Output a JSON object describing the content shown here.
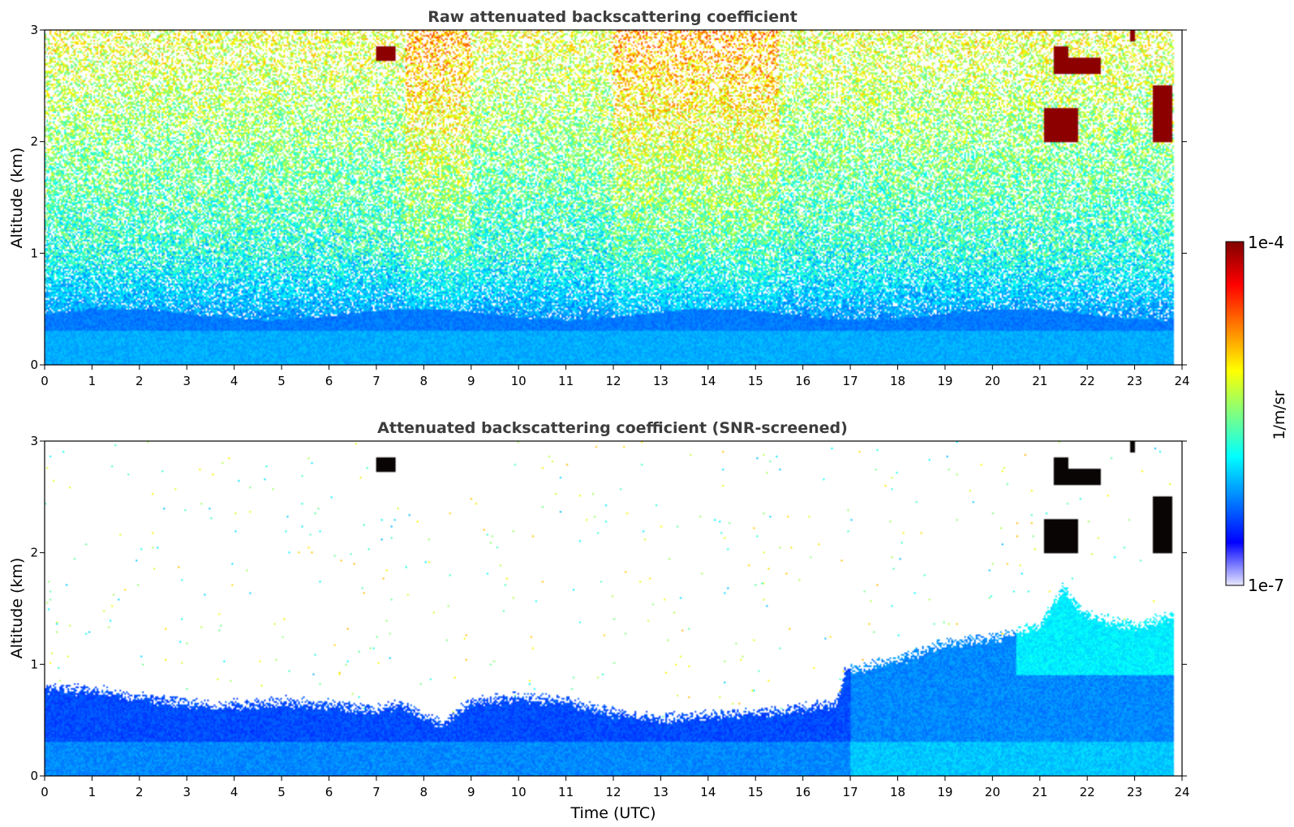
{
  "chart_data": [
    {
      "type": "heatmap",
      "title": "Raw attenuated backscattering coefficient",
      "xlabel": "",
      "ylabel": "Altitude (km)",
      "xlim": [
        0,
        24
      ],
      "ylim": [
        0,
        3
      ],
      "x_ticks": [
        "0",
        "1",
        "2",
        "3",
        "4",
        "5",
        "6",
        "7",
        "8",
        "9",
        "10",
        "11",
        "12",
        "13",
        "14",
        "15",
        "16",
        "17",
        "18",
        "19",
        "20",
        "21",
        "22",
        "23",
        "24"
      ],
      "y_ticks": [
        "0",
        "1",
        "2",
        "3"
      ],
      "layers": [
        {
          "feature": "near-surface layer",
          "t_start": 0,
          "t_end": 23.8,
          "alt_top_km": 0.5,
          "level": "1e-6"
        },
        {
          "feature": "noisy upper region",
          "t_start": 0,
          "t_end": 23.8,
          "alt_bottom_km": 0.5,
          "alt_top_km": 3,
          "level": "3e-6"
        }
      ],
      "clouds": [
        {
          "t_start": 7.0,
          "t_end": 7.4,
          "alt_bottom_km": 2.72,
          "alt_top_km": 2.85
        },
        {
          "t_start": 21.3,
          "t_end": 21.6,
          "alt_bottom_km": 2.6,
          "alt_top_km": 2.85
        },
        {
          "t_start": 21.6,
          "t_end": 22.3,
          "alt_bottom_km": 2.6,
          "alt_top_km": 2.75
        },
        {
          "t_start": 21.1,
          "t_end": 21.8,
          "alt_bottom_km": 2.0,
          "alt_top_km": 2.3
        },
        {
          "t_start": 23.4,
          "t_end": 23.8,
          "alt_bottom_km": 2.0,
          "alt_top_km": 2.5
        },
        {
          "t_start": 22.9,
          "t_end": 23.0,
          "alt_bottom_km": 2.9,
          "alt_top_km": 3.0
        }
      ]
    },
    {
      "type": "heatmap",
      "title": "Attenuated backscattering coefficient (SNR-screened)",
      "xlabel": "Time (UTC)",
      "ylabel": "Altitude (km)",
      "xlim": [
        0,
        24
      ],
      "ylim": [
        0,
        3
      ],
      "x_ticks": [
        "0",
        "1",
        "2",
        "3",
        "4",
        "5",
        "6",
        "7",
        "8",
        "9",
        "10",
        "11",
        "12",
        "13",
        "14",
        "15",
        "16",
        "17",
        "18",
        "19",
        "20",
        "21",
        "22",
        "23",
        "24"
      ],
      "y_ticks": [
        "0",
        "1",
        "2",
        "3"
      ],
      "boundary_layer_top": {
        "time": [
          0,
          1,
          2,
          3,
          4,
          5,
          6,
          7,
          7.5,
          8,
          8.4,
          9,
          10,
          11,
          12,
          13,
          14,
          15,
          16,
          16.7,
          16.9,
          18,
          19,
          20,
          21,
          21.5,
          22,
          23,
          23.8
        ],
        "alt_km": [
          0.8,
          0.78,
          0.72,
          0.66,
          0.65,
          0.68,
          0.65,
          0.6,
          0.65,
          0.55,
          0.48,
          0.68,
          0.72,
          0.68,
          0.58,
          0.52,
          0.56,
          0.58,
          0.62,
          0.66,
          0.95,
          1.05,
          1.2,
          1.25,
          1.35,
          1.7,
          1.45,
          1.35,
          1.45
        ]
      },
      "clouds": [
        {
          "t_start": 7.0,
          "t_end": 7.4,
          "alt_bottom_km": 2.72,
          "alt_top_km": 2.85
        },
        {
          "t_start": 21.3,
          "t_end": 21.6,
          "alt_bottom_km": 2.6,
          "alt_top_km": 2.85
        },
        {
          "t_start": 21.6,
          "t_end": 22.3,
          "alt_bottom_km": 2.6,
          "alt_top_km": 2.75
        },
        {
          "t_start": 21.1,
          "t_end": 21.8,
          "alt_bottom_km": 2.0,
          "alt_top_km": 2.3
        },
        {
          "t_start": 23.4,
          "t_end": 23.8,
          "alt_bottom_km": 2.0,
          "alt_top_km": 2.5
        },
        {
          "t_start": 22.9,
          "t_end": 23.0,
          "alt_bottom_km": 2.9,
          "alt_top_km": 3.0
        }
      ]
    }
  ],
  "colorbar": {
    "label": "1/m/sr",
    "max_label": "1e-4",
    "min_label": "1e-7",
    "scale": "log",
    "colormap": "jet",
    "colors": [
      "#e8e8ff",
      "#0000ff",
      "#0080ff",
      "#00ffff",
      "#80ff80",
      "#ffff00",
      "#ff8000",
      "#ff0000",
      "#800000"
    ]
  }
}
